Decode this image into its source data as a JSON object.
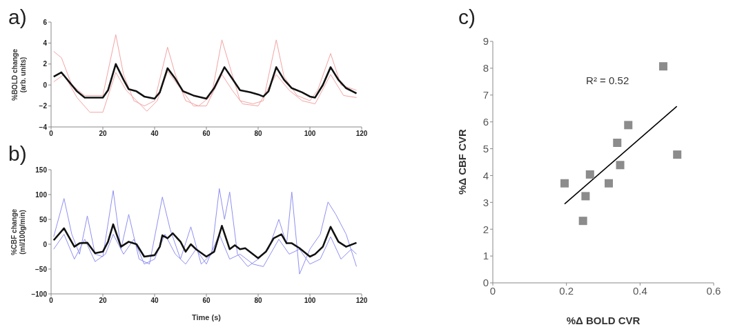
{
  "chart_data": [
    {
      "type": "line",
      "title": "a)",
      "ylabel": "%BOLD change\n(arb. units)",
      "xlim": [
        0,
        120
      ],
      "xticks": [
        0,
        20,
        40,
        60,
        80,
        100,
        120
      ],
      "ylim": [
        -4,
        6
      ],
      "yticks": [
        -4,
        -2,
        0,
        2,
        4,
        6
      ],
      "marker": "none",
      "line_style": "solid",
      "series": [
        {
          "color": "#f4a3a3",
          "x": [
            1,
            4,
            8,
            13,
            20,
            25,
            28,
            32,
            36,
            40,
            45,
            48,
            52,
            57,
            62,
            66,
            69,
            73,
            78,
            82,
            87,
            90,
            95,
            100,
            103,
            108,
            112,
            118
          ],
          "values": [
            3.2,
            2.6,
            0,
            -1.0,
            -1.0,
            4.8,
            1.0,
            -1.5,
            -2.0,
            -1.5,
            3.6,
            1.0,
            -1.5,
            -2.0,
            -1.0,
            4.3,
            1.8,
            -1.5,
            -1.8,
            -1.5,
            4.3,
            0.8,
            -1.0,
            -1.5,
            -0.5,
            3.0,
            0,
            -0.5
          ]
        },
        {
          "color": "#f4a3a3",
          "x": [
            1,
            5,
            10,
            15,
            20,
            25,
            29,
            33,
            37,
            41,
            45,
            49,
            55,
            60,
            66,
            70,
            74,
            80,
            87,
            92,
            97,
            102,
            108,
            113,
            118
          ],
          "values": [
            0.3,
            1.0,
            -1.2,
            -2.6,
            -2.6,
            1.2,
            -0.5,
            -1.5,
            -2.5,
            -1.5,
            1.3,
            0,
            -2.0,
            -2.0,
            1.0,
            -0.5,
            -1.8,
            -2.0,
            1.0,
            -0.5,
            -1.5,
            -1.8,
            1.0,
            -1.0,
            -1.2
          ]
        },
        {
          "color": "#111111",
          "x": [
            1,
            4,
            10,
            13,
            20,
            22,
            25,
            28,
            30,
            33,
            36,
            40,
            42,
            45,
            48,
            51,
            55,
            60,
            63,
            67,
            70,
            73,
            77,
            80,
            82,
            84,
            87,
            90,
            93,
            97,
            100,
            102,
            105,
            108,
            111,
            114,
            118
          ],
          "values": [
            0.8,
            1.2,
            -0.6,
            -1.2,
            -1.2,
            -0.5,
            2.0,
            0.5,
            -0.4,
            -0.6,
            -1.1,
            -1.3,
            -0.7,
            1.6,
            0.6,
            -0.6,
            -1.0,
            -1.3,
            -0.3,
            1.7,
            0.6,
            -0.5,
            -0.7,
            -0.9,
            -1.1,
            -0.6,
            1.7,
            0.5,
            -0.3,
            -0.7,
            -1.1,
            -1.2,
            0,
            1.7,
            0.5,
            -0.3,
            -0.8
          ]
        }
      ]
    },
    {
      "type": "line",
      "title": "b)",
      "xlabel": "Time (s)",
      "ylabel": "%CBF change\n(ml/100g/min)",
      "xlim": [
        0,
        120
      ],
      "xticks": [
        0,
        20,
        40,
        60,
        80,
        100,
        120
      ],
      "ylim": [
        -100,
        150
      ],
      "yticks": [
        -100,
        -50,
        0,
        50,
        100,
        150
      ],
      "marker": "none",
      "line_style": "solid",
      "series": [
        {
          "color": "#8f8ff2",
          "x": [
            1,
            5,
            8,
            11,
            14,
            17,
            20,
            24,
            27,
            30,
            34,
            38,
            43,
            46,
            50,
            54,
            58,
            62,
            65,
            67,
            69,
            72,
            76,
            80,
            84,
            88,
            91,
            93,
            96,
            100,
            104,
            107,
            110,
            114,
            118
          ],
          "values": [
            15,
            92,
            20,
            -20,
            57,
            -20,
            -25,
            108,
            -10,
            60,
            -30,
            -40,
            95,
            30,
            -30,
            35,
            -40,
            -20,
            112,
            50,
            105,
            -20,
            -45,
            -30,
            -10,
            50,
            0,
            105,
            -60,
            -10,
            20,
            85,
            60,
            20,
            -45
          ]
        },
        {
          "color": "#8f8ff2",
          "x": [
            1,
            5,
            9,
            13,
            17,
            21,
            24,
            28,
            32,
            36,
            40,
            44,
            48,
            52,
            56,
            60,
            65,
            69,
            73,
            78,
            82,
            88,
            92,
            96,
            100,
            104,
            108,
            112,
            116,
            118
          ],
          "values": [
            -10,
            20,
            -30,
            10,
            -35,
            -20,
            20,
            -20,
            10,
            -40,
            -30,
            20,
            -20,
            -40,
            -10,
            -40,
            20,
            -30,
            -20,
            -40,
            -45,
            10,
            -20,
            -10,
            -40,
            -30,
            15,
            -30,
            -10,
            -20
          ]
        },
        {
          "color": "#111111",
          "x": [
            1,
            5,
            9,
            11,
            14,
            17,
            20,
            22,
            24,
            27,
            30,
            33,
            36,
            40,
            42,
            43,
            45,
            47,
            50,
            52,
            54,
            56,
            60,
            63,
            66,
            69,
            71,
            73,
            75,
            80,
            83,
            86,
            89,
            91,
            93,
            96,
            100,
            102,
            105,
            108,
            111,
            114,
            118
          ],
          "values": [
            8,
            32,
            -5,
            2,
            3,
            -18,
            -15,
            5,
            40,
            -5,
            5,
            0,
            -25,
            -22,
            -5,
            18,
            12,
            22,
            5,
            -15,
            0,
            -10,
            -25,
            -15,
            37,
            -10,
            -2,
            -10,
            -8,
            -28,
            -15,
            12,
            20,
            2,
            2,
            -8,
            -25,
            -20,
            -5,
            35,
            5,
            -5,
            3
          ]
        }
      ]
    },
    {
      "type": "scatter",
      "title": "c)",
      "xlabel": "%Δ BOLD CVR",
      "ylabel": "%Δ CBF CVR",
      "xlim": [
        0,
        0.6
      ],
      "xticks": [
        0,
        0.2,
        0.4,
        0.6
      ],
      "ylim": [
        0,
        9
      ],
      "yticks": [
        0,
        1,
        2,
        3,
        4,
        5,
        6,
        7,
        8,
        9
      ],
      "marker": "square",
      "annotations": [
        "R² = 0.52"
      ],
      "series": [
        {
          "color": "#8c8c8c",
          "x": [
            0.195,
            0.252,
            0.245,
            0.264,
            0.315,
            0.338,
            0.346,
            0.368,
            0.463,
            0.501
          ],
          "values": [
            3.71,
            3.23,
            2.31,
            4.04,
            3.71,
            5.22,
            4.39,
            5.88,
            8.07,
            4.78
          ]
        },
        {
          "type": "line",
          "marker": "none",
          "color": "#000000",
          "x": [
            0.195,
            0.5
          ],
          "values": [
            2.94,
            6.58
          ]
        }
      ]
    }
  ]
}
